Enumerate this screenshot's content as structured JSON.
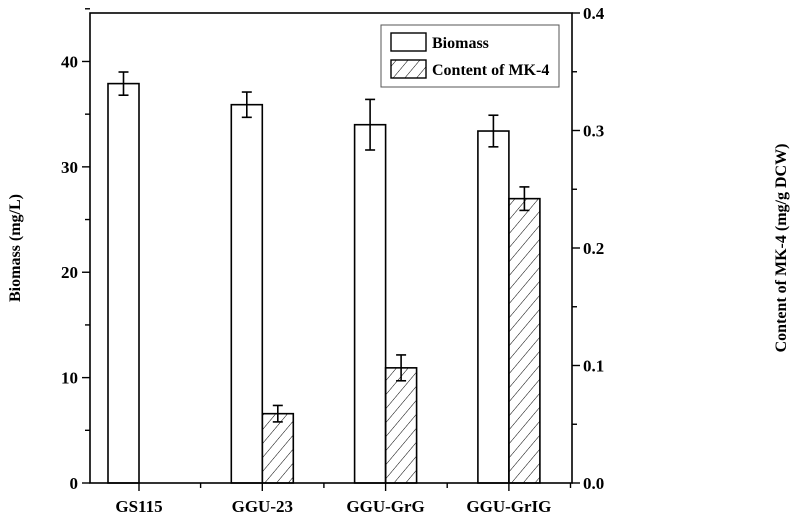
{
  "chart_data": {
    "type": "bar",
    "categories": [
      "GS115",
      "GGU-23",
      "GGU-GrG",
      "GGU-GrIG"
    ],
    "series": [
      {
        "name": "Biomass",
        "axis": "left",
        "pattern": "open",
        "values": [
          37.9,
          35.9,
          34.0,
          33.4
        ],
        "errors": [
          1.1,
          1.2,
          2.4,
          1.5
        ]
      },
      {
        "name": "Content of MK-4",
        "axis": "right",
        "pattern": "hatched",
        "values": [
          null,
          0.059,
          0.098,
          0.242
        ],
        "errors": [
          null,
          0.007,
          0.011,
          0.01
        ]
      }
    ],
    "ylabel": "Biomass (mg/L)",
    "y2label": "Content of MK-4 (mg/g DCW)",
    "ylim": [
      0,
      44.6
    ],
    "y2lim": [
      0,
      0.4
    ],
    "yticks": [
      "0",
      "10",
      "20",
      "30",
      "40"
    ],
    "y2ticks": [
      "0.0",
      "0.1",
      "0.2",
      "0.3",
      "0.4"
    ],
    "grid": false,
    "legend": {
      "position": "top-right",
      "entries": [
        "Biomass",
        "Content of MK-4"
      ]
    }
  }
}
